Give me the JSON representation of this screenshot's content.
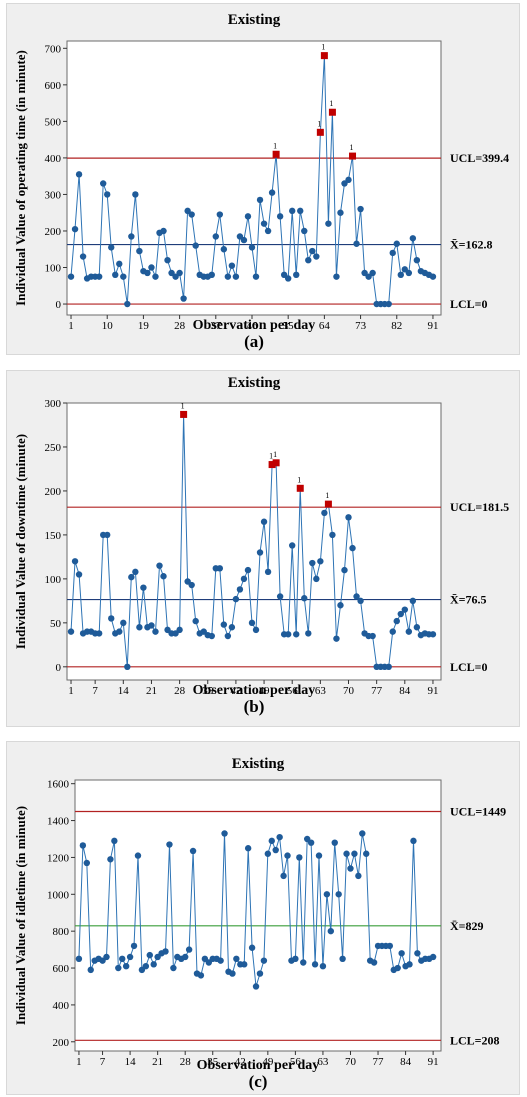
{
  "chart_data": [
    {
      "type": "line",
      "chart_kind": "I-chart",
      "title": "Existing",
      "xlabel": "Observation per day",
      "ylabel": "Individual Value of operating time (in minute)",
      "caption": "(a)",
      "ylim": [
        -30,
        720
      ],
      "xlim": [
        0,
        93
      ],
      "yticks": [
        0,
        100,
        200,
        300,
        400,
        500,
        600,
        700
      ],
      "xticks": [
        1,
        10,
        19,
        28,
        37,
        46,
        55,
        64,
        73,
        82,
        91
      ],
      "ucl": {
        "value": 399.4,
        "label": "UCL=399.4"
      },
      "mean": {
        "value": 162.8,
        "label": "X̄=162.8"
      },
      "lcl": {
        "value": 0,
        "label": "LCL=0"
      },
      "colors": {
        "line": "#2e74b5",
        "point": "#1f5b99",
        "out_of_control": "#c00000",
        "limit_line": "#b22222",
        "center_line": "#1f3d7a"
      },
      "x": [
        1,
        2,
        3,
        4,
        5,
        6,
        7,
        8,
        9,
        10,
        11,
        12,
        13,
        14,
        15,
        16,
        17,
        18,
        19,
        20,
        21,
        22,
        23,
        24,
        25,
        26,
        27,
        28,
        29,
        30,
        31,
        32,
        33,
        34,
        35,
        36,
        37,
        38,
        39,
        40,
        41,
        42,
        43,
        44,
        45,
        46,
        47,
        48,
        49,
        50,
        51,
        52,
        53,
        54,
        55,
        56,
        57,
        58,
        59,
        60,
        61,
        62,
        63,
        64,
        65,
        66,
        67,
        68,
        69,
        70,
        71,
        72,
        73,
        74,
        75,
        76,
        77,
        78,
        79,
        80,
        81,
        82,
        83,
        84,
        85,
        86,
        87,
        88,
        89,
        90,
        91
      ],
      "values": [
        75,
        205,
        355,
        130,
        70,
        75,
        75,
        75,
        330,
        300,
        155,
        80,
        110,
        75,
        0,
        185,
        300,
        145,
        90,
        85,
        100,
        75,
        195,
        200,
        120,
        85,
        75,
        85,
        15,
        255,
        245,
        160,
        80,
        75,
        75,
        80,
        185,
        245,
        150,
        75,
        105,
        75,
        185,
        175,
        240,
        155,
        75,
        285,
        220,
        200,
        305,
        410,
        240,
        80,
        70,
        255,
        80,
        255,
        200,
        120,
        145,
        130,
        470,
        680,
        220,
        525,
        75,
        250,
        330,
        340,
        405,
        165,
        260,
        85,
        75,
        85,
        0,
        0,
        0,
        0,
        140,
        165,
        80,
        95,
        85,
        180,
        120,
        90,
        85,
        80,
        75
      ],
      "out_of_control_points": [
        {
          "x": 52,
          "y": 410,
          "label": "1"
        },
        {
          "x": 63,
          "y": 470,
          "label": "1"
        },
        {
          "x": 64,
          "y": 680,
          "label": "1"
        },
        {
          "x": 66,
          "y": 525,
          "label": "1"
        },
        {
          "x": 71,
          "y": 405,
          "label": "1"
        }
      ]
    },
    {
      "type": "line",
      "chart_kind": "I-chart",
      "title": "Existing",
      "xlabel": "Observation per day",
      "ylabel": "Individual Value of downtime (minute)",
      "caption": "(b)",
      "ylim": [
        -15,
        300
      ],
      "xlim": [
        0,
        93
      ],
      "yticks": [
        0,
        50,
        100,
        150,
        200,
        250,
        300
      ],
      "xticks": [
        1,
        7,
        14,
        21,
        28,
        35,
        42,
        49,
        56,
        63,
        70,
        77,
        84,
        91
      ],
      "ucl": {
        "value": 181.5,
        "label": "UCL=181.5"
      },
      "mean": {
        "value": 76.5,
        "label": "X̄=76.5"
      },
      "lcl": {
        "value": 0,
        "label": "LCL=0"
      },
      "colors": {
        "line": "#2e74b5",
        "point": "#1f5b99",
        "out_of_control": "#c00000",
        "limit_line": "#b22222",
        "center_line": "#1f3d7a"
      },
      "x": [
        1,
        2,
        3,
        4,
        5,
        6,
        7,
        8,
        9,
        10,
        11,
        12,
        13,
        14,
        15,
        16,
        17,
        18,
        19,
        20,
        21,
        22,
        23,
        24,
        25,
        26,
        27,
        28,
        29,
        30,
        31,
        32,
        33,
        34,
        35,
        36,
        37,
        38,
        39,
        40,
        41,
        42,
        43,
        44,
        45,
        46,
        47,
        48,
        49,
        50,
        51,
        52,
        53,
        54,
        55,
        56,
        57,
        58,
        59,
        60,
        61,
        62,
        63,
        64,
        65,
        66,
        67,
        68,
        69,
        70,
        71,
        72,
        73,
        74,
        75,
        76,
        77,
        78,
        79,
        80,
        81,
        82,
        83,
        84,
        85,
        86,
        87,
        88,
        89,
        90,
        91
      ],
      "values": [
        40,
        120,
        105,
        38,
        40,
        40,
        38,
        38,
        150,
        150,
        55,
        38,
        40,
        50,
        0,
        102,
        108,
        45,
        90,
        45,
        47,
        40,
        115,
        103,
        42,
        38,
        38,
        42,
        287,
        97,
        93,
        52,
        38,
        40,
        36,
        35,
        112,
        112,
        48,
        35,
        45,
        77,
        88,
        100,
        110,
        50,
        42,
        130,
        165,
        108,
        230,
        232,
        80,
        37,
        37,
        138,
        37,
        203,
        78,
        38,
        118,
        100,
        120,
        175,
        185,
        150,
        32,
        70,
        110,
        170,
        135,
        80,
        75,
        38,
        35,
        35,
        0,
        0,
        0,
        0,
        40,
        52,
        60,
        65,
        40,
        75,
        45,
        36,
        38,
        37,
        37
      ],
      "out_of_control_points": [
        {
          "x": 29,
          "y": 287,
          "label": "1"
        },
        {
          "x": 51,
          "y": 230,
          "label": "1"
        },
        {
          "x": 52,
          "y": 232,
          "label": "1"
        },
        {
          "x": 58,
          "y": 203,
          "label": "1"
        },
        {
          "x": 65,
          "y": 185,
          "label": "1"
        }
      ]
    },
    {
      "type": "line",
      "chart_kind": "I-chart",
      "title": "Existing",
      "xlabel": "Observation per day",
      "ylabel": "Individual Value of idletime (in minute)",
      "caption": "(c)",
      "ylim": [
        150,
        1620
      ],
      "xlim": [
        0,
        93
      ],
      "yticks": [
        200,
        400,
        600,
        800,
        1000,
        1200,
        1400,
        1600
      ],
      "xticks": [
        1,
        7,
        14,
        21,
        28,
        35,
        42,
        49,
        56,
        63,
        70,
        77,
        84,
        91
      ],
      "ucl": {
        "value": 1449,
        "label": "UCL=1449"
      },
      "mean": {
        "value": 829,
        "label": "X̄=829"
      },
      "lcl": {
        "value": 208,
        "label": "LCL=208"
      },
      "colors": {
        "line": "#2e74b5",
        "point": "#1f5b99",
        "limit_line": "#b22222",
        "center_line": "#3a9e3a"
      },
      "x": [
        1,
        2,
        3,
        4,
        5,
        6,
        7,
        8,
        9,
        10,
        11,
        12,
        13,
        14,
        15,
        16,
        17,
        18,
        19,
        20,
        21,
        22,
        23,
        24,
        25,
        26,
        27,
        28,
        29,
        30,
        31,
        32,
        33,
        34,
        35,
        36,
        37,
        38,
        39,
        40,
        41,
        42,
        43,
        44,
        45,
        46,
        47,
        48,
        49,
        50,
        51,
        52,
        53,
        54,
        55,
        56,
        57,
        58,
        59,
        60,
        61,
        62,
        63,
        64,
        65,
        66,
        67,
        68,
        69,
        70,
        71,
        72,
        73,
        74,
        75,
        76,
        77,
        78,
        79,
        80,
        81,
        82,
        83,
        84,
        85,
        86,
        87,
        88,
        89,
        90,
        91
      ],
      "values": [
        650,
        1265,
        1170,
        590,
        640,
        650,
        640,
        660,
        1190,
        1290,
        600,
        650,
        610,
        660,
        720,
        1210,
        590,
        610,
        670,
        620,
        660,
        680,
        690,
        1270,
        600,
        660,
        650,
        660,
        700,
        1235,
        570,
        560,
        650,
        630,
        650,
        650,
        640,
        1330,
        580,
        570,
        650,
        620,
        620,
        1250,
        710,
        500,
        570,
        640,
        1220,
        1290,
        1240,
        1310,
        1100,
        1210,
        640,
        650,
        1200,
        630,
        1300,
        1280,
        620,
        1210,
        610,
        1000,
        800,
        1280,
        1000,
        650,
        1220,
        1140,
        1220,
        1100,
        1330,
        1220,
        640,
        630,
        720,
        720,
        720,
        720,
        590,
        600,
        680,
        610,
        620,
        1290,
        680,
        640,
        650,
        650,
        660
      ],
      "out_of_control_points": []
    }
  ]
}
